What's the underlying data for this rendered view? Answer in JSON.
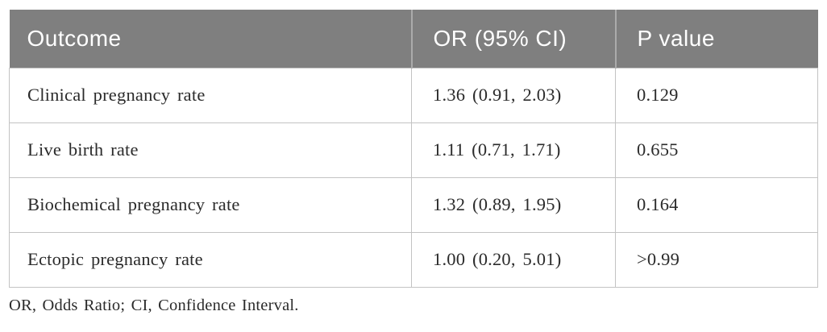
{
  "table": {
    "columns": [
      {
        "label": "Outcome"
      },
      {
        "label": "OR (95% CI)"
      },
      {
        "label": "P value"
      }
    ],
    "rows": [
      {
        "outcome": "Clinical pregnancy rate",
        "or_ci": "1.36 (0.91, 2.03)",
        "p_value": "0.129"
      },
      {
        "outcome": "Live birth rate",
        "or_ci": "1.11 (0.71, 1.71)",
        "p_value": "0.655"
      },
      {
        "outcome": "Biochemical pregnancy rate",
        "or_ci": "1.32 (0.89, 1.95)",
        "p_value": "0.164"
      },
      {
        "outcome": "Ectopic pregnancy rate",
        "or_ci": "1.00 (0.20, 5.01)",
        "p_value": ">0.99"
      }
    ],
    "footnote": "OR, Odds Ratio; CI, Confidence Interval."
  },
  "colors": {
    "header_bg": "#7f7f7f",
    "header_text": "#ffffff",
    "header_divider": "#ababab",
    "grid_border": "#c3c3c3",
    "body_text": "#2b2b2b",
    "page_bg": "#ffffff"
  }
}
